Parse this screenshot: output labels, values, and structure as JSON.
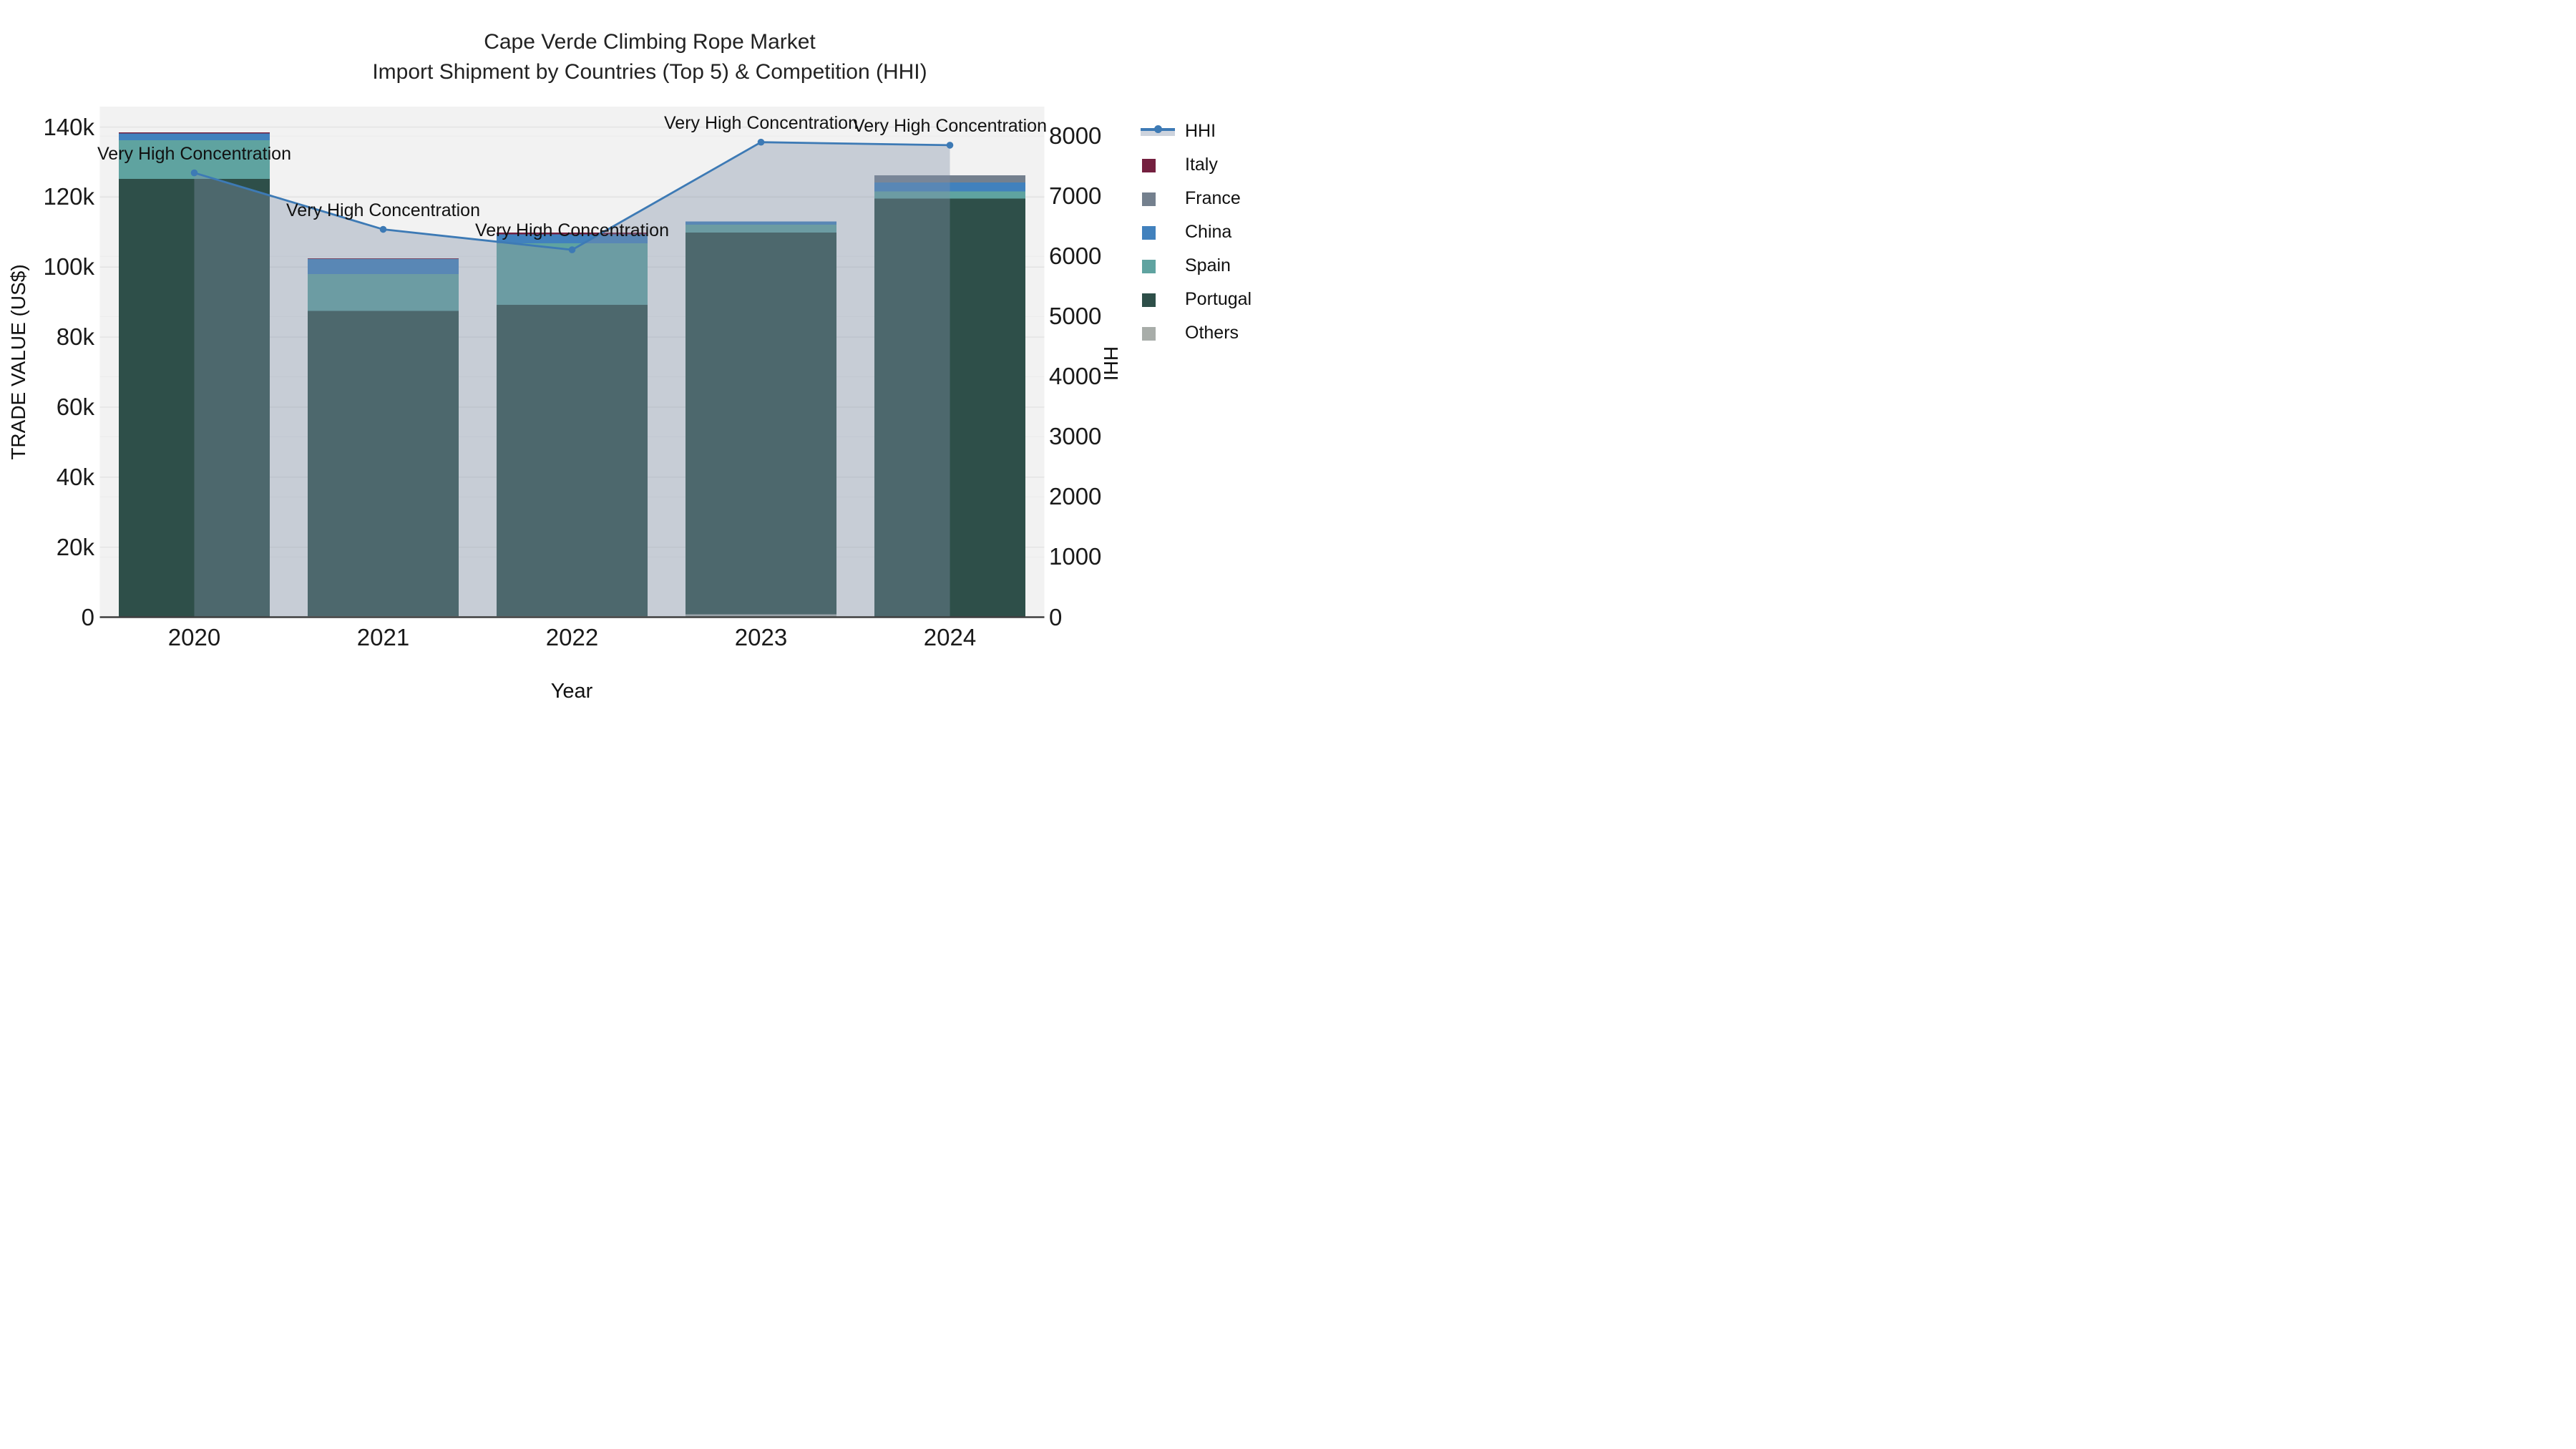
{
  "title": {
    "line1": "Cape Verde Climbing Rope Market",
    "line2": "Import Shipment by Countries (Top 5) & Competition (HHI)"
  },
  "left_axis": {
    "title": "TRADE VALUE (US$)",
    "ticks": [
      "0",
      "20k",
      "40k",
      "60k",
      "80k",
      "100k",
      "120k",
      "140k"
    ],
    "range": [
      0,
      140000
    ]
  },
  "right_axis": {
    "title": "HHI",
    "ticks": [
      "0",
      "1000",
      "2000",
      "3000",
      "4000",
      "5000",
      "6000",
      "7000",
      "8000"
    ],
    "range": [
      0,
      8000
    ]
  },
  "x_axis": {
    "title": "Year"
  },
  "legend": {
    "items": [
      {
        "label": "HHI",
        "type": "line",
        "color": "#3d7ab5"
      },
      {
        "label": "Italy",
        "type": "swatch",
        "color": "#74203f"
      },
      {
        "label": "France",
        "type": "swatch",
        "color": "#74808e"
      },
      {
        "label": "China",
        "type": "swatch",
        "color": "#4181bd"
      },
      {
        "label": "Spain",
        "type": "swatch",
        "color": "#5fa3a0"
      },
      {
        "label": "Portugal",
        "type": "swatch",
        "color": "#2e4f49"
      },
      {
        "label": "Others",
        "type": "swatch",
        "color": "#a8ada9"
      }
    ]
  },
  "chart_data": {
    "type": "bar+line",
    "title": "Cape Verde Climbing Rope Market — Import Shipment by Countries (Top 5) & Competition (HHI)",
    "categories": [
      "2020",
      "2021",
      "2022",
      "2023",
      "2024"
    ],
    "bar_series": [
      {
        "name": "Others",
        "color": "#a8ada9",
        "values": [
          0,
          300,
          300,
          800,
          200
        ]
      },
      {
        "name": "Portugal",
        "color": "#2e4f49",
        "values": [
          125200,
          87200,
          88950,
          109100,
          119400
        ]
      },
      {
        "name": "Spain",
        "color": "#5fa3a0",
        "values": [
          11000,
          10500,
          17550,
          2200,
          2000
        ]
      },
      {
        "name": "China",
        "color": "#4181bd",
        "values": [
          1950,
          4350,
          2550,
          900,
          2600
        ]
      },
      {
        "name": "France",
        "color": "#74808e",
        "values": [
          0,
          0,
          0,
          0,
          2000
        ]
      },
      {
        "name": "Italy",
        "color": "#74203f",
        "values": [
          300,
          200,
          500,
          0,
          0
        ]
      }
    ],
    "bar_totals": [
      138450,
      102550,
      109850,
      113000,
      126200
    ],
    "line_series": {
      "name": "HHI",
      "axis": "right",
      "values": [
        7390,
        6450,
        6110,
        7900,
        7850
      ],
      "color": "#3d7ab5",
      "fill": "rgba(128,144,168,0.38)"
    },
    "annotations": [
      {
        "text": "Very High Concentration",
        "x": "2020"
      },
      {
        "text": "Very High Concentration",
        "x": "2021"
      },
      {
        "text": "Very High Concentration",
        "x": "2022"
      },
      {
        "text": "Very High Concentration",
        "x": "2023"
      },
      {
        "text": "Very High Concentration",
        "x": "2024"
      }
    ],
    "ylim_left": [
      0,
      140000
    ],
    "ylim_right": [
      0,
      8000
    ],
    "xlabel": "Year",
    "ylabel_left": "TRADE VALUE (US$)",
    "ylabel_right": "HHI",
    "plot_bg": "#f2f2f2",
    "grid_color_left": "#e3e3e3",
    "grid_color_right": "#ebebeb",
    "baseline_color": "#3f3f3f",
    "legend_position": "right"
  }
}
